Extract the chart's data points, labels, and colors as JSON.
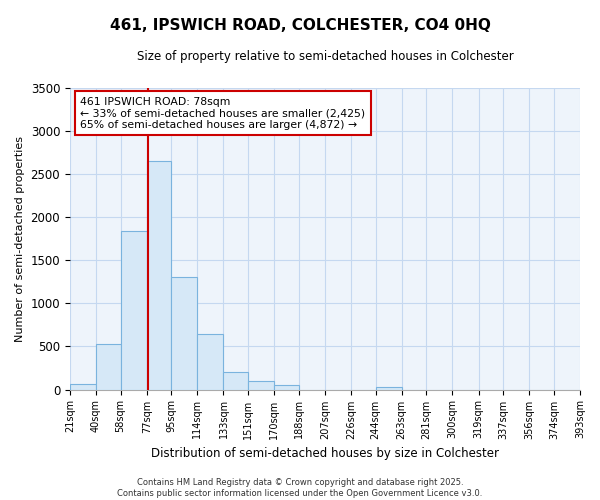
{
  "title": "461, IPSWICH ROAD, COLCHESTER, CO4 0HQ",
  "subtitle": "Size of property relative to semi-detached houses in Colchester",
  "xlabel": "Distribution of semi-detached houses by size in Colchester",
  "ylabel": "Number of semi-detached properties",
  "bin_edges": [
    21,
    40,
    58,
    77,
    95,
    114,
    133,
    151,
    170,
    188,
    207,
    226,
    244,
    263,
    281,
    300,
    319,
    337,
    356,
    374,
    393
  ],
  "bin_heights": [
    65,
    530,
    1840,
    2650,
    1310,
    640,
    200,
    100,
    50,
    0,
    0,
    0,
    35,
    0,
    0,
    0,
    0,
    0,
    0,
    0
  ],
  "bar_facecolor": "#d6e8f7",
  "bar_edgecolor": "#7ab3de",
  "red_line_x": 78,
  "annotation_line1": "461 IPSWICH ROAD: 78sqm",
  "annotation_line2": "← 33% of semi-detached houses are smaller (2,425)",
  "annotation_line3": "65% of semi-detached houses are larger (4,872) →",
  "annotation_box_color": "#cc0000",
  "ylim": [
    0,
    3500
  ],
  "yticks": [
    0,
    500,
    1000,
    1500,
    2000,
    2500,
    3000,
    3500
  ],
  "bg_color": "#eef4fb",
  "grid_color": "#c5d8f0",
  "footer_line1": "Contains HM Land Registry data © Crown copyright and database right 2025.",
  "footer_line2": "Contains public sector information licensed under the Open Government Licence v3.0."
}
